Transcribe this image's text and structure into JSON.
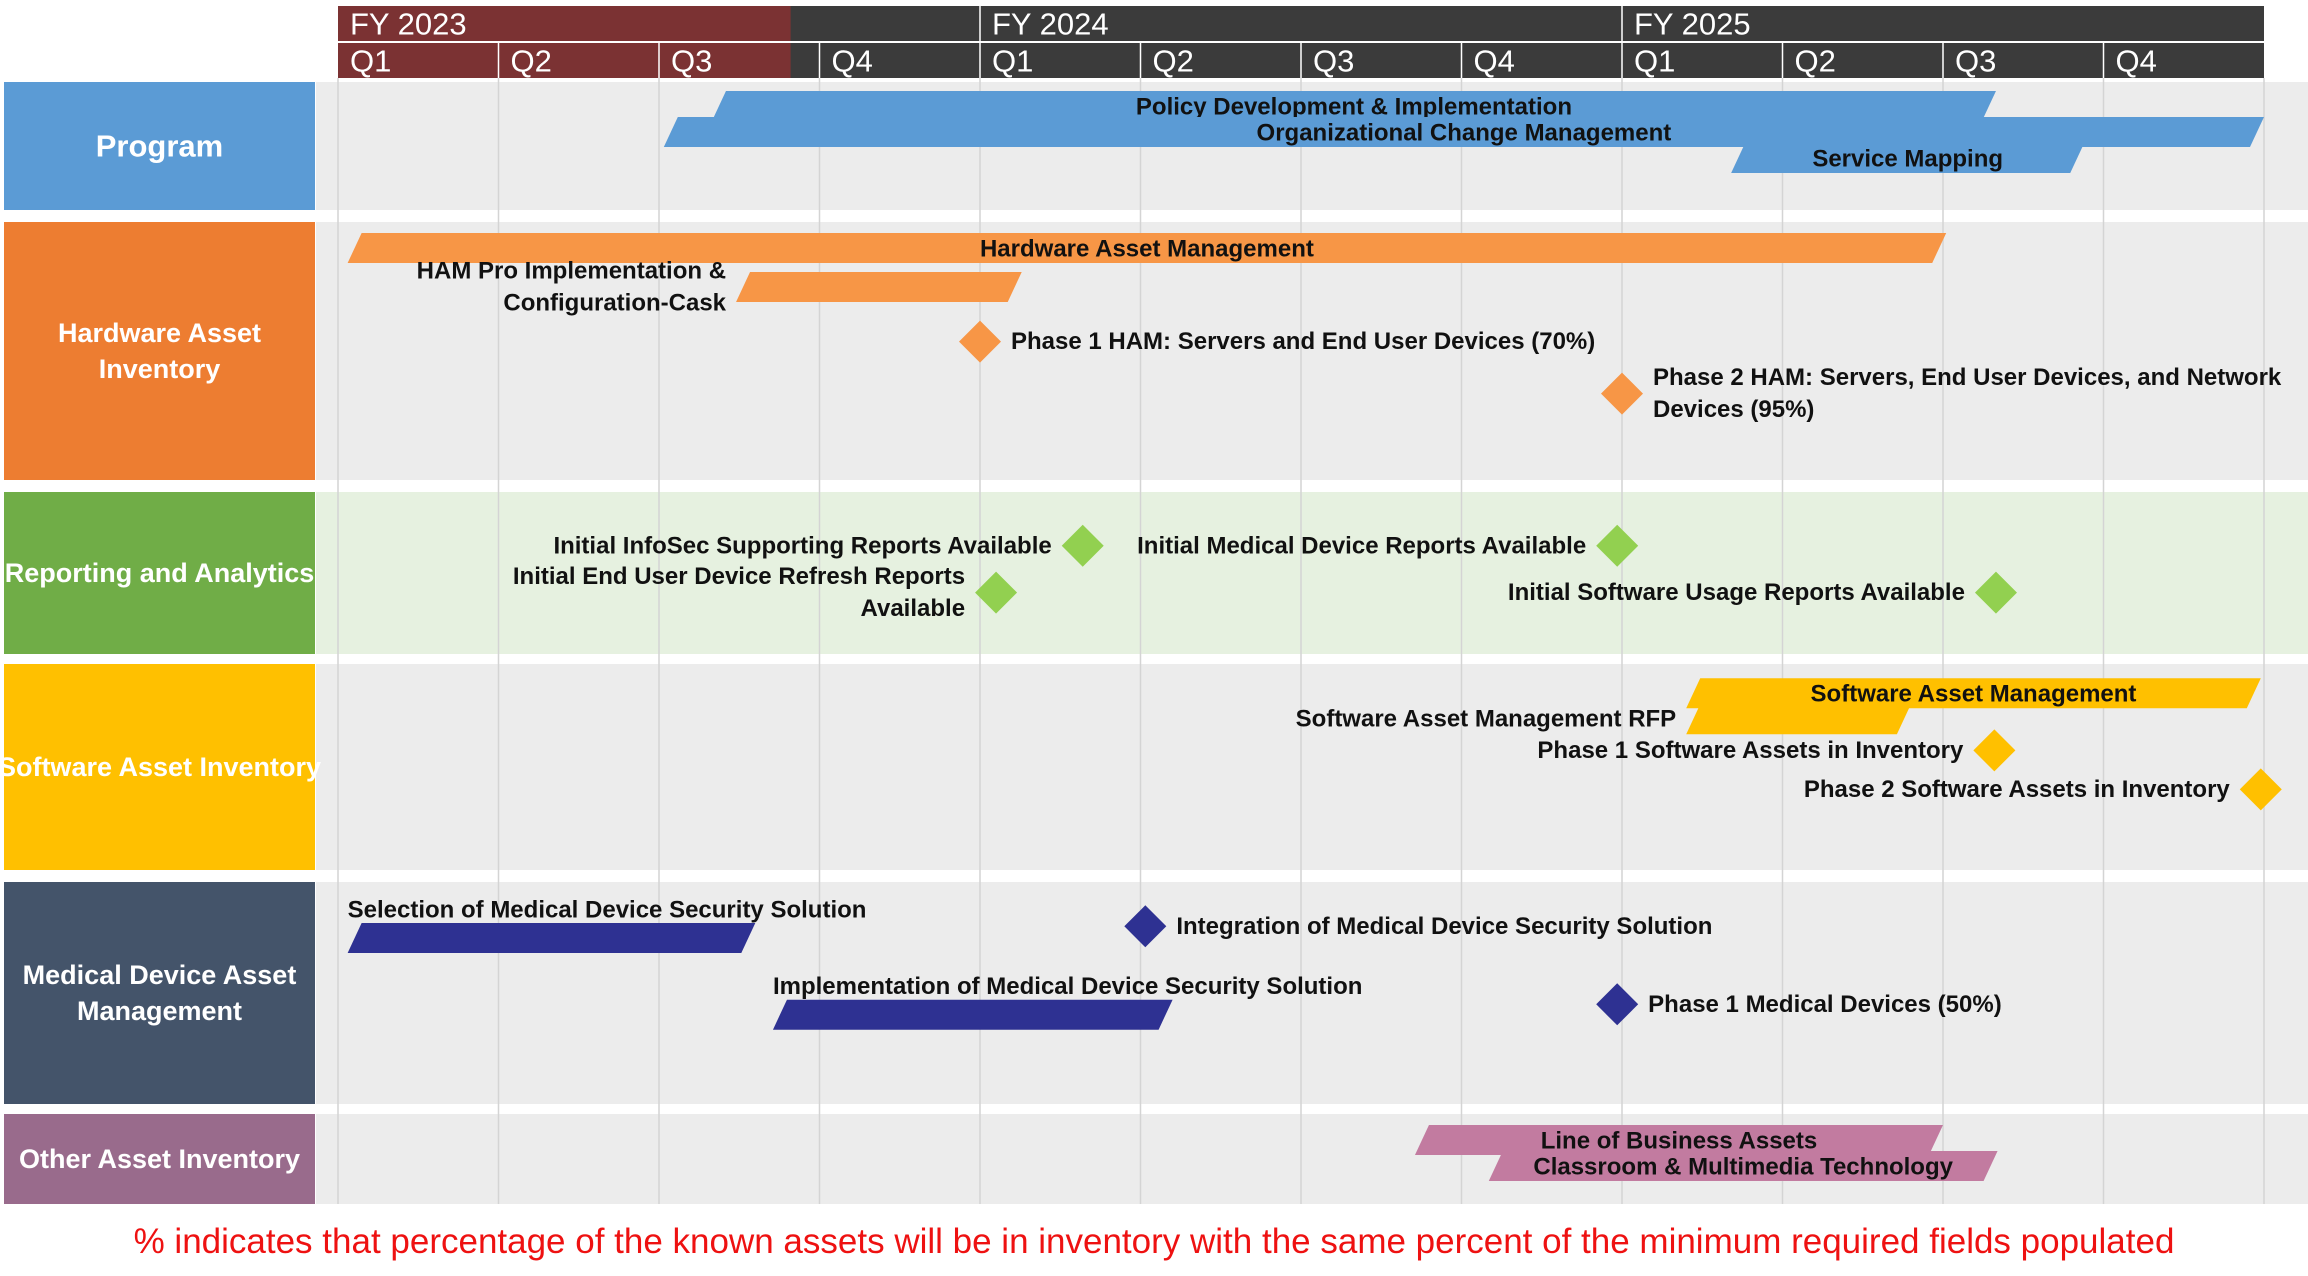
{
  "colors": {
    "header_past": "#7b3233",
    "header_future": "#3b3b3b",
    "grid_line": "#d4d4d4",
    "row_bg": "#ececec",
    "row_bg_reporting": "#e6f1e0"
  },
  "chart_data": {
    "type": "gantt",
    "timeline": {
      "quarters": [
        "Q1",
        "Q2",
        "Q3",
        "Q4",
        "Q1",
        "Q2",
        "Q3",
        "Q4",
        "Q1",
        "Q2",
        "Q3",
        "Q4"
      ],
      "fiscal_years": [
        {
          "label": "FY 2023",
          "start": 0,
          "end": 2.82
        },
        {
          "label": "FY 2024",
          "start": 4,
          "end": 8
        },
        {
          "label": "FY 2025",
          "start": 8,
          "end": 12
        }
      ],
      "completed_through": 2.82
    },
    "rows": [
      {
        "label": "Program",
        "label_lines": [
          "Program"
        ],
        "color": "#5b9bd5",
        "label_size": 31,
        "items": [
          {
            "kind": "bar",
            "label": "Policy Development & Implementation",
            "start": 2.33,
            "end": 10.33,
            "lane": 0,
            "label_pos": "inside",
            "color": "#5b9bd5"
          },
          {
            "kind": "bar",
            "label": "Organizational Change Management",
            "start": 2.03,
            "end": 12.0,
            "lane": 1,
            "label_pos": "inside",
            "color": "#5b9bd5"
          },
          {
            "kind": "bar",
            "label": "Service Mapping",
            "start": 8.68,
            "end": 10.88,
            "lane": 2,
            "label_pos": "inside",
            "color": "#5b9bd5"
          }
        ]
      },
      {
        "label": "Hardware Asset Inventory",
        "label_lines": [
          "Hardware Asset",
          "Inventory"
        ],
        "color": "#ed7d31",
        "label_size": 27,
        "items": [
          {
            "kind": "bar",
            "label": "Hardware Asset Management",
            "start": 0.06,
            "end": 10.02,
            "lane": 0,
            "label_pos": "inside",
            "color": "#f79646"
          },
          {
            "kind": "bar",
            "label_lines": [
              "HAM Pro Implementation &",
              "Configuration-Cask"
            ],
            "start": 2.48,
            "end": 4.26,
            "lane": 1.5,
            "label_pos": "left",
            "color": "#f79646"
          },
          {
            "kind": "milestone",
            "label_lines": [
              "Phase 1 HAM: Servers and End User Devices (70%)"
            ],
            "at": 4.0,
            "lane": 3.6,
            "label_pos": "right",
            "color": "#f79646"
          },
          {
            "kind": "milestone",
            "label_lines": [
              "Phase 2 HAM: Servers, End User Devices, and Network",
              "Devices (95%)"
            ],
            "at": 8.0,
            "lane": 5.6,
            "label_pos": "right",
            "color": "#f79646"
          }
        ]
      },
      {
        "label": "Reporting and Analytics",
        "label_lines": [
          "Reporting and Analytics"
        ],
        "color": "#70ad47",
        "label_size": 27,
        "bg": "#e6f1e0",
        "items": [
          {
            "kind": "milestone",
            "label_lines": [
              "Initial InfoSec Supporting Reports Available"
            ],
            "at": 4.64,
            "lane": 0.8,
            "label_pos": "left",
            "color": "#92d050"
          },
          {
            "kind": "milestone",
            "label_lines": [
              "Initial Medical Device Reports Available"
            ],
            "at": 7.97,
            "lane": 0.8,
            "label_pos": "left",
            "color": "#92d050"
          },
          {
            "kind": "milestone",
            "label_lines": [
              "Initial End User Device Refresh Reports",
              "Available"
            ],
            "at": 4.1,
            "lane": 2.6,
            "label_pos": "left",
            "color": "#92d050"
          },
          {
            "kind": "milestone",
            "label_lines": [
              "Initial Software Usage Reports Available"
            ],
            "at": 10.33,
            "lane": 2.6,
            "label_pos": "left",
            "color": "#92d050"
          }
        ]
      },
      {
        "label": "Software Asset Inventory",
        "label_lines": [
          "Software Asset Inventory"
        ],
        "color": "#ffc000",
        "label_size": 27,
        "items": [
          {
            "kind": "bar",
            "label": "Software Asset Management",
            "start": 8.4,
            "end": 11.98,
            "lane": 0.2,
            "label_pos": "inside",
            "color": "#ffc000"
          },
          {
            "kind": "bar",
            "label_lines": [
              "Software Asset Management RFP"
            ],
            "start": 8.4,
            "end": 9.8,
            "lane": 1.2,
            "label_pos": "left",
            "color": "#ffc000"
          },
          {
            "kind": "milestone",
            "label_lines": [
              "Phase 1 Software Assets in Inventory"
            ],
            "at": 10.32,
            "lane": 2.4,
            "label_pos": "left",
            "color": "#ffc000"
          },
          {
            "kind": "milestone",
            "label_lines": [
              "Phase 2 Software Assets in Inventory"
            ],
            "at": 11.98,
            "lane": 3.9,
            "label_pos": "left",
            "color": "#ffc000"
          }
        ]
      },
      {
        "label": "Medical Device Asset Management",
        "label_lines": [
          "Medical Device Asset",
          "Management"
        ],
        "color": "#44546a",
        "label_size": 27,
        "items": [
          {
            "kind": "bar",
            "label_lines": [
              "Selection of Medical Device Security Solution"
            ],
            "start": 0.06,
            "end": 2.6,
            "lane": 1.0,
            "label_pos": "above",
            "color": "#2e3192"
          },
          {
            "kind": "milestone",
            "label_lines": [
              "Integration of Medical Device Security Solution"
            ],
            "at": 5.03,
            "lane": 0.55,
            "label_pos": "right",
            "color": "#2e3192"
          },
          {
            "kind": "bar",
            "label_lines": [
              "Implementation of Medical Device Security Solution"
            ],
            "start": 2.71,
            "end": 5.2,
            "lane": 3.95,
            "label_pos": "above",
            "color": "#2e3192"
          },
          {
            "kind": "milestone",
            "label_lines": [
              "Phase 1 Medical Devices (50%)"
            ],
            "at": 7.97,
            "lane": 3.55,
            "label_pos": "right",
            "color": "#2e3192"
          }
        ]
      },
      {
        "label": "Other Asset Inventory",
        "label_lines": [
          "Other Asset Inventory"
        ],
        "color": "#996b8c",
        "label_size": 27,
        "items": [
          {
            "kind": "bar",
            "label": "Line of Business Assets",
            "start": 6.71,
            "end": 10.0,
            "lane": 0,
            "label_pos": "inside",
            "color": "#c27ba0"
          },
          {
            "kind": "bar",
            "label": "Classroom & Multimedia Technology",
            "start": 7.17,
            "end": 10.34,
            "lane": 1,
            "label_pos": "inside",
            "color": "#c27ba0"
          }
        ]
      }
    ]
  },
  "footnote": "% indicates that percentage of the known assets will be in inventory with the same percent of the minimum required fields populated"
}
